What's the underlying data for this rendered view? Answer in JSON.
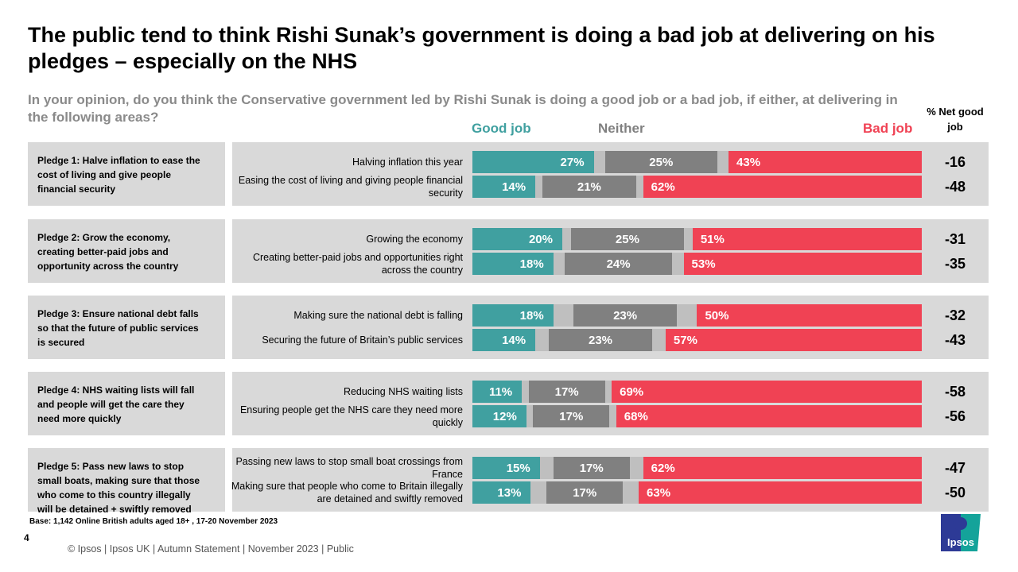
{
  "title": "The public tend to think Rishi Sunak’s government is doing a bad job at delivering on his pledges – especially on the NHS",
  "subtitle": "In your opinion, do you think the Conservative government led by Rishi Sunak is doing a good job or a bad job, if either, at delivering in the following areas?",
  "net_header": "% Net good job",
  "legend": {
    "good": "Good job",
    "neither": "Neither",
    "bad": "Bad job"
  },
  "colors": {
    "good": "#40a0a0",
    "neither": "#808080",
    "bad": "#f04254",
    "dont_know": "#bfbfbf",
    "panel": "#d9d9d9"
  },
  "chart_data": {
    "type": "bar",
    "stacked": true,
    "orientation": "horizontal",
    "series_names": [
      "Good job",
      "Neither",
      "Bad job"
    ],
    "groups": [
      {
        "pledge": "Pledge 1: Halve inflation to ease the cost of living and give people financial security",
        "items": [
          {
            "label": "Halving inflation this year",
            "good": 27,
            "neither": 25,
            "bad": 43,
            "net": "-16"
          },
          {
            "label": "Easing the cost of living and giving people financial security",
            "good": 14,
            "neither": 21,
            "bad": 62,
            "net": "-48"
          }
        ]
      },
      {
        "pledge": "Pledge 2: Grow the economy, creating better-paid jobs and opportunity across the country",
        "items": [
          {
            "label": "Growing the economy",
            "good": 20,
            "neither": 25,
            "bad": 51,
            "net": "-31"
          },
          {
            "label": "Creating better-paid jobs and opportunities right across the country",
            "good": 18,
            "neither": 24,
            "bad": 53,
            "net": "-35"
          }
        ]
      },
      {
        "pledge": "Pledge 3: Ensure national debt falls so that the future of public services is secured",
        "items": [
          {
            "label": "Making sure the national debt is falling",
            "good": 18,
            "neither": 23,
            "bad": 50,
            "net": "-32"
          },
          {
            "label": "Securing the future of Britain’s public services",
            "good": 14,
            "neither": 23,
            "bad": 57,
            "net": "-43"
          }
        ]
      },
      {
        "pledge": "Pledge 4: NHS waiting lists will fall and people will get the care they need more quickly",
        "items": [
          {
            "label": "Reducing NHS waiting lists",
            "good": 11,
            "neither": 17,
            "bad": 69,
            "net": "-58"
          },
          {
            "label": "Ensuring people get the NHS care they need more quickly",
            "good": 12,
            "neither": 17,
            "bad": 68,
            "net": "-56"
          }
        ]
      },
      {
        "pledge": "Pledge 5: Pass new laws to stop small boats, making sure that those who come to this country illegally will be detained + swiftly removed",
        "items": [
          {
            "label": "Passing new laws to stop small boat crossings from France",
            "good": 15,
            "neither": 17,
            "bad": 62,
            "net": "-47"
          },
          {
            "label": "Making sure that people who come to Britain illegally are detained and swiftly removed",
            "good": 13,
            "neither": 17,
            "bad": 63,
            "net": "-50"
          }
        ]
      }
    ]
  },
  "base": "Base: 1,142 Online British adults aged 18+ , 17-20 November 2023",
  "page_number": "4",
  "footer": "© Ipsos |  Ipsos UK | Autumn Statement | November  2023 | Public",
  "logo_text": "Ipsos"
}
